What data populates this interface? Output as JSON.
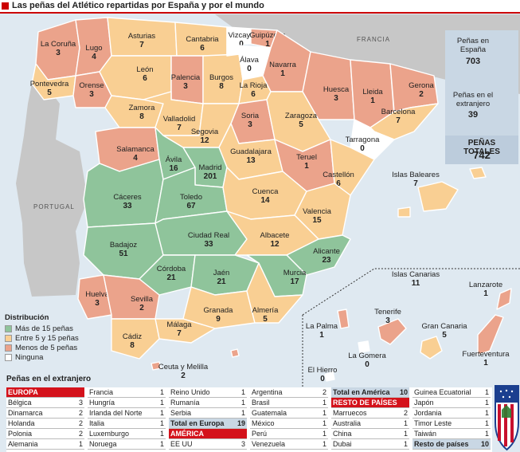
{
  "title": "Las peñas del Atlético repartidas por España y por el mundo",
  "colors": {
    "mas15": "#8fc49b",
    "entre5_15": "#f9cf93",
    "menos5": "#eba38b",
    "ninguna": "#ffffff",
    "sea": "#dfe9f1",
    "neighbour": "#c7c7c7"
  },
  "geo_labels": {
    "francia": "FRANCIA",
    "portugal": "PORTUGAL"
  },
  "provinces": [
    {
      "name": "La Coruña",
      "value": "3",
      "cat": "menos5"
    },
    {
      "name": "Lugo",
      "value": "4",
      "cat": "menos5"
    },
    {
      "name": "Asturias",
      "value": "7",
      "cat": "entre5_15"
    },
    {
      "name": "Cantabria",
      "value": "6",
      "cat": "entre5_15"
    },
    {
      "name": "Vizcaya",
      "value": "0",
      "cat": "ninguna"
    },
    {
      "name": "Guipúzcoa",
      "value": "1",
      "cat": "menos5"
    },
    {
      "name": "Pontevedra",
      "value": "5",
      "cat": "entre5_15"
    },
    {
      "name": "Orense",
      "value": "3",
      "cat": "menos5"
    },
    {
      "name": "León",
      "value": "6",
      "cat": "entre5_15"
    },
    {
      "name": "Palencia",
      "value": "3",
      "cat": "menos5"
    },
    {
      "name": "Burgos",
      "value": "8",
      "cat": "entre5_15"
    },
    {
      "name": "Álava",
      "value": "0",
      "cat": "ninguna"
    },
    {
      "name": "Navarra",
      "value": "1",
      "cat": "menos5"
    },
    {
      "name": "La Rioja",
      "value": "6",
      "cat": "entre5_15"
    },
    {
      "name": "Huesca",
      "value": "3",
      "cat": "menos5"
    },
    {
      "name": "Lleida",
      "value": "1",
      "cat": "menos5"
    },
    {
      "name": "Gerona",
      "value": "2",
      "cat": "menos5"
    },
    {
      "name": "Zamora",
      "value": "8",
      "cat": "entre5_15"
    },
    {
      "name": "Valladolid",
      "value": "7",
      "cat": "entre5_15"
    },
    {
      "name": "Soria",
      "value": "3",
      "cat": "menos5"
    },
    {
      "name": "Zaragoza",
      "value": "5",
      "cat": "entre5_15"
    },
    {
      "name": "Barcelona",
      "value": "7",
      "cat": "entre5_15"
    },
    {
      "name": "Segovia",
      "value": "12",
      "cat": "entre5_15"
    },
    {
      "name": "Tarragona",
      "value": "0",
      "cat": "ninguna"
    },
    {
      "name": "Salamanca",
      "value": "4",
      "cat": "menos5"
    },
    {
      "name": "Ávila",
      "value": "16",
      "cat": "mas15"
    },
    {
      "name": "Guadalajara",
      "value": "13",
      "cat": "entre5_15"
    },
    {
      "name": "Teruel",
      "value": "1",
      "cat": "menos5"
    },
    {
      "name": "Madrid",
      "value": "201",
      "cat": "mas15"
    },
    {
      "name": "Castellón",
      "value": "6",
      "cat": "entre5_15"
    },
    {
      "name": "Cáceres",
      "value": "33",
      "cat": "mas15"
    },
    {
      "name": "Toledo",
      "value": "67",
      "cat": "mas15"
    },
    {
      "name": "Cuenca",
      "value": "14",
      "cat": "entre5_15"
    },
    {
      "name": "Valencia",
      "value": "15",
      "cat": "entre5_15"
    },
    {
      "name": "Badajoz",
      "value": "51",
      "cat": "mas15"
    },
    {
      "name": "Ciudad Real",
      "value": "33",
      "cat": "mas15"
    },
    {
      "name": "Albacete",
      "value": "12",
      "cat": "entre5_15"
    },
    {
      "name": "Alicante",
      "value": "23",
      "cat": "mas15"
    },
    {
      "name": "Córdoba",
      "value": "21",
      "cat": "mas15"
    },
    {
      "name": "Jaén",
      "value": "21",
      "cat": "mas15"
    },
    {
      "name": "Murcia",
      "value": "17",
      "cat": "mas15"
    },
    {
      "name": "Huelva",
      "value": "3",
      "cat": "menos5"
    },
    {
      "name": "Sevilla",
      "value": "2",
      "cat": "menos5"
    },
    {
      "name": "Granada",
      "value": "9",
      "cat": "entre5_15"
    },
    {
      "name": "Almería",
      "value": "5",
      "cat": "entre5_15"
    },
    {
      "name": "Málaga",
      "value": "7",
      "cat": "entre5_15"
    },
    {
      "name": "Cádiz",
      "value": "8",
      "cat": "entre5_15"
    },
    {
      "name": "Islas Baleares",
      "value": "7",
      "cat": "entre5_15"
    },
    {
      "name": "Ceuta y Melilla",
      "value": "2",
      "cat": "menos5"
    }
  ],
  "canarias": {
    "name": "Islas Canarias",
    "value": "11",
    "islands": [
      {
        "name": "Lanzarote",
        "value": "1"
      },
      {
        "name": "Tenerife",
        "value": "3"
      },
      {
        "name": "La Palma",
        "value": "1"
      },
      {
        "name": "Gran Canaria",
        "value": "5"
      },
      {
        "name": "La Gomera",
        "value": "0"
      },
      {
        "name": "El Hierro",
        "value": "0"
      },
      {
        "name": "Fuerteventura",
        "value": "1"
      }
    ]
  },
  "totals": {
    "espana_label": "Peñas en España",
    "espana_value": "703",
    "extranjero_label": "Peñas en el extranjero",
    "extranjero_value": "39",
    "total_label": "PEÑAS TOTALES",
    "total_value": "742"
  },
  "legend": {
    "title": "Distribución",
    "items": [
      {
        "label": "Más de 15 peñas",
        "cat": "mas15"
      },
      {
        "label": "Entre 5 y 15 peñas",
        "cat": "entre5_15"
      },
      {
        "label": "Menos de 5 peñas",
        "cat": "menos5"
      },
      {
        "label": "Ninguna",
        "cat": "ninguna"
      }
    ]
  },
  "abroad": {
    "title": "Peñas en el extranjero",
    "columns": [
      [
        {
          "label": "EUROPA",
          "value": "",
          "style": "red"
        },
        {
          "label": "Bélgica",
          "value": "3"
        },
        {
          "label": "Dinamarca",
          "value": "2"
        },
        {
          "label": "Holanda",
          "value": "2"
        },
        {
          "label": "Polonia",
          "value": "2"
        },
        {
          "label": "Alemania",
          "value": "1"
        }
      ],
      [
        {
          "label": "Francia",
          "value": "1"
        },
        {
          "label": "Hungría",
          "value": "1"
        },
        {
          "label": "Irlanda del Norte",
          "value": "1"
        },
        {
          "label": "Italia",
          "value": "1"
        },
        {
          "label": "Luxemburgo",
          "value": "1"
        },
        {
          "label": "Noruega",
          "value": "1"
        }
      ],
      [
        {
          "label": "Reino Unido",
          "value": "1"
        },
        {
          "label": "Rumanía",
          "value": "1"
        },
        {
          "label": "Serbia",
          "value": "1"
        },
        {
          "label": "Total en Europa",
          "value": "19",
          "style": "tot"
        },
        {
          "label": "AMÉRICA",
          "value": "",
          "style": "red"
        },
        {
          "label": "EE UU",
          "value": "3"
        }
      ],
      [
        {
          "label": "Argentina",
          "value": "2"
        },
        {
          "label": "Brasil",
          "value": "1"
        },
        {
          "label": "Guatemala",
          "value": "1"
        },
        {
          "label": "México",
          "value": "1"
        },
        {
          "label": "Perú",
          "value": "1"
        },
        {
          "label": "Venezuela",
          "value": "1"
        }
      ],
      [
        {
          "label": "Total en América",
          "value": "10",
          "style": "tot"
        },
        {
          "label": "RESTO DE PAÍSES",
          "value": "",
          "style": "red"
        },
        {
          "label": "Marruecos",
          "value": "2"
        },
        {
          "label": "Australia",
          "value": "1"
        },
        {
          "label": "China",
          "value": "1"
        },
        {
          "label": "Dubai",
          "value": "1"
        }
      ],
      [
        {
          "label": "Guinea Ecuatorial",
          "value": "1"
        },
        {
          "label": "Japón",
          "value": "1"
        },
        {
          "label": "Jordania",
          "value": "1"
        },
        {
          "label": "Timor Leste",
          "value": "1"
        },
        {
          "label": "Taiwán",
          "value": "1"
        },
        {
          "label": "Resto de países",
          "value": "10",
          "style": "tot"
        }
      ]
    ]
  }
}
